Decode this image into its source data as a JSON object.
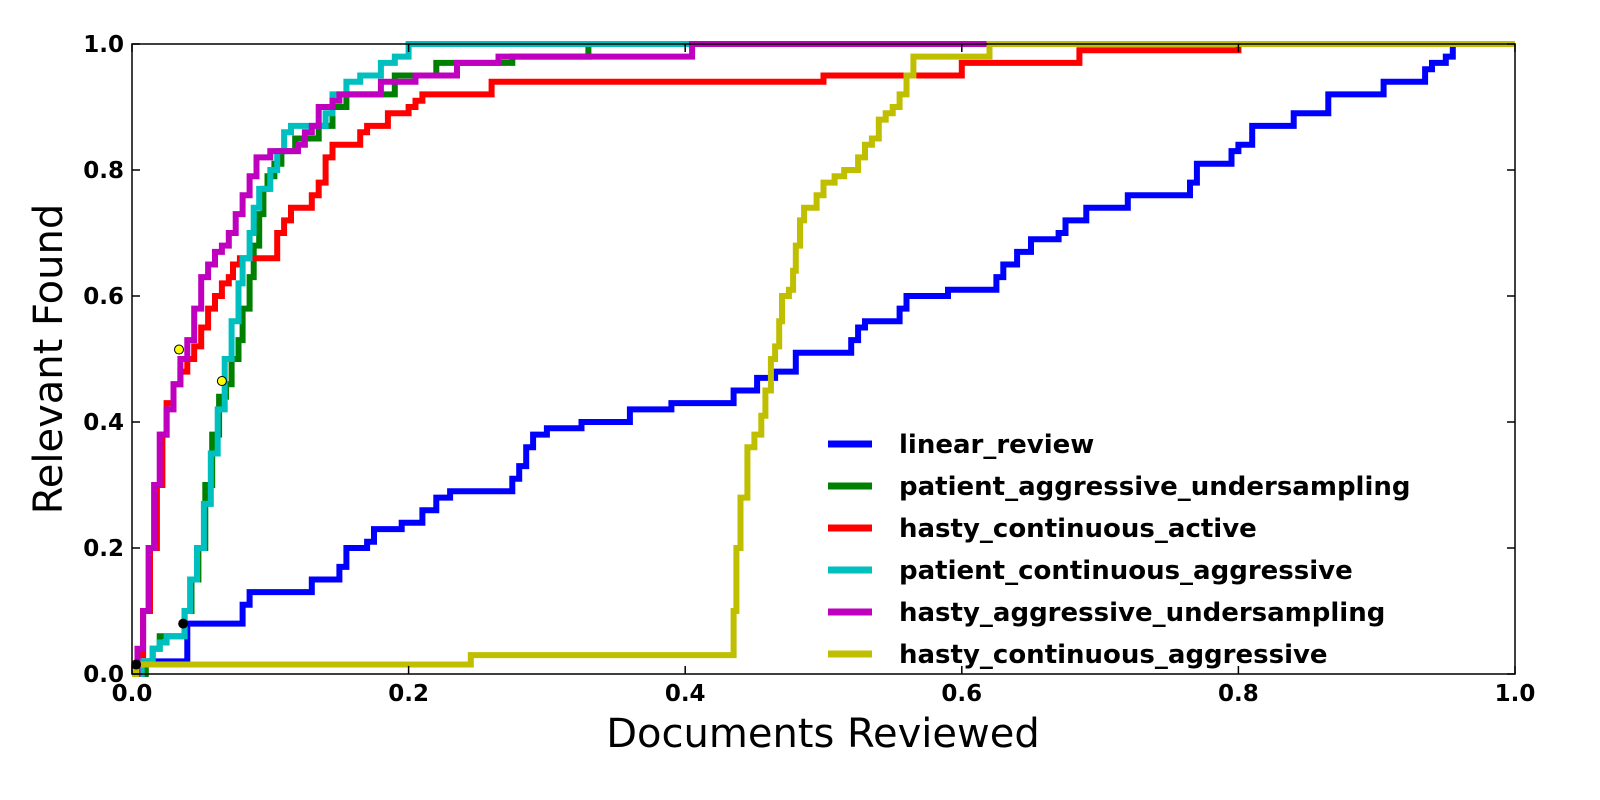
{
  "chart_data": {
    "type": "line",
    "xlabel": "Documents Reviewed",
    "ylabel": "Relevant Found",
    "xlim": [
      0.0,
      1.0
    ],
    "ylim": [
      0.0,
      1.0
    ],
    "xticks": [
      "0.0",
      "0.2",
      "0.4",
      "0.6",
      "0.8",
      "1.0"
    ],
    "yticks": [
      "0.0",
      "0.2",
      "0.4",
      "0.6",
      "0.8",
      "1.0"
    ],
    "grid": false,
    "legend_position": "bottom-right",
    "series": [
      {
        "name": "linear_review",
        "color": "#0000ff",
        "step": true,
        "points": [
          [
            0.0,
            0.0
          ],
          [
            0.005,
            0.02
          ],
          [
            0.04,
            0.08
          ],
          [
            0.08,
            0.08
          ],
          [
            0.08,
            0.11
          ],
          [
            0.085,
            0.13
          ],
          [
            0.13,
            0.13
          ],
          [
            0.13,
            0.15
          ],
          [
            0.145,
            0.15
          ],
          [
            0.15,
            0.17
          ],
          [
            0.155,
            0.2
          ],
          [
            0.165,
            0.2
          ],
          [
            0.17,
            0.21
          ],
          [
            0.175,
            0.23
          ],
          [
            0.195,
            0.23
          ],
          [
            0.195,
            0.24
          ],
          [
            0.205,
            0.24
          ],
          [
            0.21,
            0.26
          ],
          [
            0.22,
            0.28
          ],
          [
            0.225,
            0.28
          ],
          [
            0.23,
            0.29
          ],
          [
            0.275,
            0.29
          ],
          [
            0.275,
            0.31
          ],
          [
            0.28,
            0.33
          ],
          [
            0.285,
            0.36
          ],
          [
            0.29,
            0.38
          ],
          [
            0.3,
            0.39
          ],
          [
            0.325,
            0.39
          ],
          [
            0.325,
            0.4
          ],
          [
            0.36,
            0.4
          ],
          [
            0.36,
            0.42
          ],
          [
            0.385,
            0.42
          ],
          [
            0.39,
            0.43
          ],
          [
            0.43,
            0.43
          ],
          [
            0.435,
            0.45
          ],
          [
            0.45,
            0.45
          ],
          [
            0.452,
            0.47
          ],
          [
            0.46,
            0.47
          ],
          [
            0.465,
            0.48
          ],
          [
            0.48,
            0.48
          ],
          [
            0.48,
            0.51
          ],
          [
            0.51,
            0.51
          ],
          [
            0.52,
            0.53
          ],
          [
            0.525,
            0.55
          ],
          [
            0.53,
            0.56
          ],
          [
            0.55,
            0.56
          ],
          [
            0.555,
            0.58
          ],
          [
            0.56,
            0.6
          ],
          [
            0.585,
            0.6
          ],
          [
            0.59,
            0.61
          ],
          [
            0.62,
            0.61
          ],
          [
            0.625,
            0.63
          ],
          [
            0.63,
            0.65
          ],
          [
            0.64,
            0.67
          ],
          [
            0.65,
            0.69
          ],
          [
            0.67,
            0.7
          ],
          [
            0.675,
            0.72
          ],
          [
            0.69,
            0.74
          ],
          [
            0.72,
            0.74
          ],
          [
            0.72,
            0.76
          ],
          [
            0.76,
            0.76
          ],
          [
            0.765,
            0.78
          ],
          [
            0.77,
            0.81
          ],
          [
            0.79,
            0.81
          ],
          [
            0.795,
            0.83
          ],
          [
            0.8,
            0.84
          ],
          [
            0.81,
            0.87
          ],
          [
            0.835,
            0.87
          ],
          [
            0.84,
            0.89
          ],
          [
            0.86,
            0.89
          ],
          [
            0.865,
            0.92
          ],
          [
            0.9,
            0.92
          ],
          [
            0.905,
            0.94
          ],
          [
            0.93,
            0.94
          ],
          [
            0.935,
            0.96
          ],
          [
            0.94,
            0.97
          ],
          [
            0.95,
            0.98
          ],
          [
            0.955,
            1.0
          ],
          [
            1.0,
            1.0
          ]
        ]
      },
      {
        "name": "patient_aggressive_undersampling",
        "color": "#008000",
        "step": true,
        "points": [
          [
            0.0,
            0.0
          ],
          [
            0.01,
            0.02
          ],
          [
            0.015,
            0.04
          ],
          [
            0.02,
            0.06
          ],
          [
            0.035,
            0.06
          ],
          [
            0.038,
            0.1
          ],
          [
            0.043,
            0.15
          ],
          [
            0.048,
            0.2
          ],
          [
            0.053,
            0.3
          ],
          [
            0.058,
            0.38
          ],
          [
            0.063,
            0.44
          ],
          [
            0.068,
            0.46
          ],
          [
            0.072,
            0.5
          ],
          [
            0.077,
            0.53
          ],
          [
            0.08,
            0.58
          ],
          [
            0.085,
            0.63
          ],
          [
            0.088,
            0.68
          ],
          [
            0.092,
            0.73
          ],
          [
            0.095,
            0.77
          ],
          [
            0.098,
            0.79
          ],
          [
            0.103,
            0.81
          ],
          [
            0.108,
            0.83
          ],
          [
            0.118,
            0.85
          ],
          [
            0.135,
            0.87
          ],
          [
            0.145,
            0.9
          ],
          [
            0.155,
            0.92
          ],
          [
            0.185,
            0.92
          ],
          [
            0.19,
            0.95
          ],
          [
            0.215,
            0.95
          ],
          [
            0.22,
            0.97
          ],
          [
            0.27,
            0.97
          ],
          [
            0.275,
            0.98
          ],
          [
            0.31,
            0.98
          ],
          [
            0.33,
            1.0
          ],
          [
            1.0,
            1.0
          ]
        ]
      },
      {
        "name": "hasty_continuous_active",
        "color": "#ff0000",
        "step": true,
        "points": [
          [
            0.0,
            0.0
          ],
          [
            0.005,
            0.03
          ],
          [
            0.008,
            0.1
          ],
          [
            0.013,
            0.2
          ],
          [
            0.018,
            0.3
          ],
          [
            0.022,
            0.38
          ],
          [
            0.025,
            0.43
          ],
          [
            0.03,
            0.46
          ],
          [
            0.035,
            0.48
          ],
          [
            0.04,
            0.5
          ],
          [
            0.045,
            0.52
          ],
          [
            0.05,
            0.55
          ],
          [
            0.055,
            0.58
          ],
          [
            0.06,
            0.6
          ],
          [
            0.065,
            0.62
          ],
          [
            0.07,
            0.63
          ],
          [
            0.073,
            0.65
          ],
          [
            0.078,
            0.66
          ],
          [
            0.1,
            0.66
          ],
          [
            0.105,
            0.7
          ],
          [
            0.11,
            0.72
          ],
          [
            0.115,
            0.74
          ],
          [
            0.125,
            0.74
          ],
          [
            0.13,
            0.76
          ],
          [
            0.135,
            0.78
          ],
          [
            0.14,
            0.82
          ],
          [
            0.145,
            0.84
          ],
          [
            0.16,
            0.84
          ],
          [
            0.165,
            0.86
          ],
          [
            0.17,
            0.87
          ],
          [
            0.18,
            0.87
          ],
          [
            0.185,
            0.89
          ],
          [
            0.195,
            0.89
          ],
          [
            0.2,
            0.9
          ],
          [
            0.205,
            0.91
          ],
          [
            0.21,
            0.92
          ],
          [
            0.255,
            0.92
          ],
          [
            0.26,
            0.94
          ],
          [
            0.495,
            0.94
          ],
          [
            0.5,
            0.95
          ],
          [
            0.595,
            0.95
          ],
          [
            0.6,
            0.97
          ],
          [
            0.68,
            0.97
          ],
          [
            0.685,
            0.99
          ],
          [
            0.795,
            0.99
          ],
          [
            0.8,
            1.0
          ],
          [
            1.0,
            1.0
          ]
        ]
      },
      {
        "name": "patient_continuous_aggressive",
        "color": "#00bfbf",
        "step": true,
        "points": [
          [
            0.0,
            0.0
          ],
          [
            0.007,
            0.02
          ],
          [
            0.015,
            0.04
          ],
          [
            0.02,
            0.05
          ],
          [
            0.025,
            0.06
          ],
          [
            0.035,
            0.06
          ],
          [
            0.038,
            0.1
          ],
          [
            0.042,
            0.15
          ],
          [
            0.047,
            0.2
          ],
          [
            0.052,
            0.27
          ],
          [
            0.057,
            0.35
          ],
          [
            0.062,
            0.42
          ],
          [
            0.067,
            0.5
          ],
          [
            0.072,
            0.56
          ],
          [
            0.077,
            0.62
          ],
          [
            0.08,
            0.66
          ],
          [
            0.085,
            0.7
          ],
          [
            0.088,
            0.74
          ],
          [
            0.092,
            0.77
          ],
          [
            0.1,
            0.8
          ],
          [
            0.105,
            0.83
          ],
          [
            0.11,
            0.86
          ],
          [
            0.115,
            0.87
          ],
          [
            0.14,
            0.89
          ],
          [
            0.145,
            0.92
          ],
          [
            0.155,
            0.94
          ],
          [
            0.165,
            0.95
          ],
          [
            0.18,
            0.97
          ],
          [
            0.19,
            0.98
          ],
          [
            0.2,
            1.0
          ],
          [
            1.0,
            1.0
          ]
        ]
      },
      {
        "name": "hasty_aggressive_undersampling",
        "color": "#bf00bf",
        "step": true,
        "points": [
          [
            0.0,
            0.0
          ],
          [
            0.004,
            0.04
          ],
          [
            0.008,
            0.1
          ],
          [
            0.012,
            0.2
          ],
          [
            0.016,
            0.3
          ],
          [
            0.02,
            0.38
          ],
          [
            0.025,
            0.42
          ],
          [
            0.03,
            0.46
          ],
          [
            0.035,
            0.5
          ],
          [
            0.04,
            0.53
          ],
          [
            0.045,
            0.58
          ],
          [
            0.05,
            0.63
          ],
          [
            0.055,
            0.65
          ],
          [
            0.06,
            0.67
          ],
          [
            0.065,
            0.68
          ],
          [
            0.07,
            0.7
          ],
          [
            0.075,
            0.73
          ],
          [
            0.08,
            0.76
          ],
          [
            0.085,
            0.79
          ],
          [
            0.09,
            0.82
          ],
          [
            0.1,
            0.83
          ],
          [
            0.12,
            0.84
          ],
          [
            0.125,
            0.86
          ],
          [
            0.13,
            0.87
          ],
          [
            0.135,
            0.9
          ],
          [
            0.145,
            0.91
          ],
          [
            0.15,
            0.92
          ],
          [
            0.175,
            0.92
          ],
          [
            0.18,
            0.94
          ],
          [
            0.2,
            0.94
          ],
          [
            0.205,
            0.95
          ],
          [
            0.23,
            0.95
          ],
          [
            0.235,
            0.97
          ],
          [
            0.26,
            0.97
          ],
          [
            0.265,
            0.98
          ],
          [
            0.4,
            0.98
          ],
          [
            0.405,
            1.0
          ],
          [
            1.0,
            1.0
          ]
        ]
      },
      {
        "name": "hasty_continuous_aggressive",
        "color": "#bfbf00",
        "step": true,
        "points": [
          [
            0.0,
            0.0
          ],
          [
            0.003,
            0.015
          ],
          [
            0.24,
            0.015
          ],
          [
            0.245,
            0.03
          ],
          [
            0.43,
            0.03
          ],
          [
            0.435,
            0.1
          ],
          [
            0.437,
            0.2
          ],
          [
            0.44,
            0.28
          ],
          [
            0.445,
            0.36
          ],
          [
            0.45,
            0.38
          ],
          [
            0.455,
            0.41
          ],
          [
            0.458,
            0.45
          ],
          [
            0.462,
            0.5
          ],
          [
            0.465,
            0.52
          ],
          [
            0.468,
            0.56
          ],
          [
            0.47,
            0.6
          ],
          [
            0.475,
            0.61
          ],
          [
            0.478,
            0.64
          ],
          [
            0.48,
            0.68
          ],
          [
            0.483,
            0.72
          ],
          [
            0.486,
            0.74
          ],
          [
            0.49,
            0.74
          ],
          [
            0.495,
            0.76
          ],
          [
            0.5,
            0.78
          ],
          [
            0.508,
            0.79
          ],
          [
            0.515,
            0.8
          ],
          [
            0.525,
            0.82
          ],
          [
            0.53,
            0.84
          ],
          [
            0.535,
            0.85
          ],
          [
            0.54,
            0.88
          ],
          [
            0.545,
            0.89
          ],
          [
            0.55,
            0.9
          ],
          [
            0.555,
            0.92
          ],
          [
            0.56,
            0.95
          ],
          [
            0.565,
            0.98
          ],
          [
            0.61,
            0.98
          ],
          [
            0.62,
            1.0
          ],
          [
            1.0,
            1.0
          ]
        ]
      }
    ],
    "markers": [
      {
        "x": 0.003,
        "y": 0.015,
        "color": "#000000"
      },
      {
        "x": 0.037,
        "y": 0.08,
        "color": "#000000"
      },
      {
        "x": 0.034,
        "y": 0.515,
        "color": "#ffff00"
      },
      {
        "x": 0.065,
        "y": 0.465,
        "color": "#ffff00"
      }
    ]
  }
}
